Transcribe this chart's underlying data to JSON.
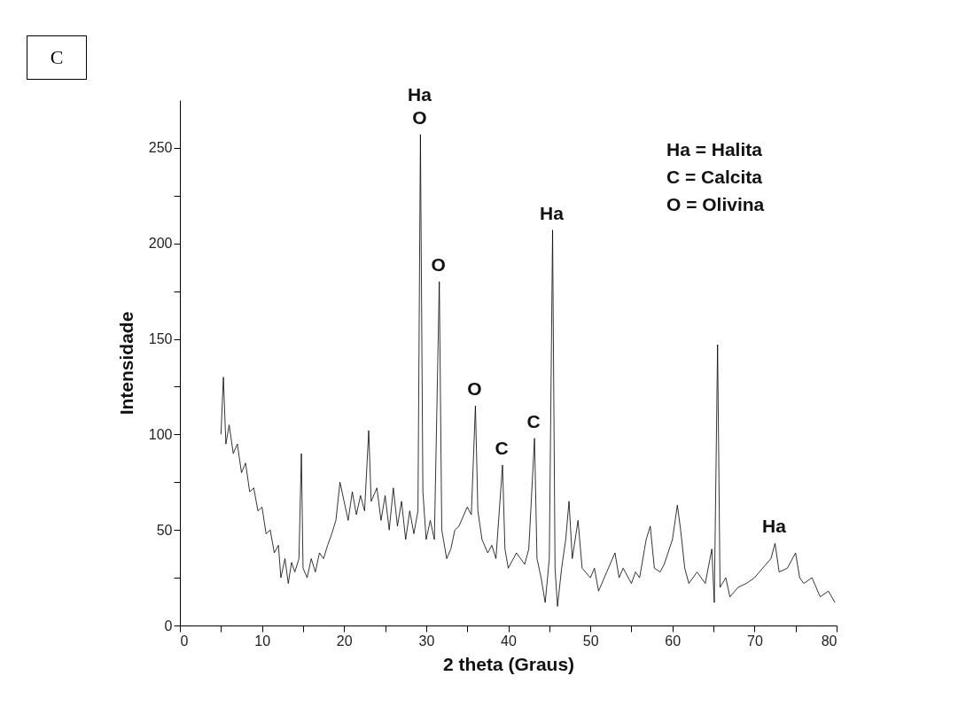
{
  "chart_data": {
    "type": "line",
    "xlabel": "2 theta (Graus)",
    "ylabel": "Intensidade",
    "xlim": [
      0,
      80
    ],
    "xticks": [
      0,
      {
        "value": 5,
        "label": null
      },
      10,
      {
        "value": 15,
        "label": null
      },
      20,
      {
        "value": 25,
        "label": null
      },
      30,
      {
        "value": 35,
        "label": null
      },
      40,
      {
        "value": 45,
        "label": null
      },
      50,
      {
        "value": 55,
        "label": null
      },
      60,
      {
        "value": 65,
        "label": null
      },
      70,
      {
        "value": 75,
        "label": null
      },
      80
    ],
    "ylim": [
      0,
      275
    ],
    "yticks": [
      0,
      {
        "value": 25,
        "label": null
      },
      50,
      {
        "value": 75,
        "label": null
      },
      100,
      {
        "value": 125,
        "label": null
      },
      150,
      {
        "value": 175,
        "label": null
      },
      200,
      {
        "value": 225,
        "label": null
      },
      250
    ],
    "grid": false,
    "marker": "none",
    "line_style": "solid",
    "annotations": [
      "C",
      "Ha = Halita",
      "C = Calcita",
      "O = Olivina",
      {
        "text": "Ha",
        "x": 29.3,
        "y": 257
      },
      {
        "text": "O",
        "x": 29.3,
        "y": 257
      },
      {
        "text": "O",
        "x": 31.6,
        "y": 180
      },
      {
        "text": "O",
        "x": 36,
        "y": 115
      },
      {
        "text": "C",
        "x": 39.3,
        "y": 84
      },
      {
        "text": "C",
        "x": 43.2,
        "y": 98
      },
      {
        "text": "Ha",
        "x": 45.4,
        "y": 207
      },
      {
        "text": "Ha",
        "x": 72.5,
        "y": 43
      }
    ],
    "series": [
      {
        "color": "#000000",
        "x": [
          5,
          5.3,
          5.6,
          6,
          6.5,
          7,
          7.5,
          8,
          8.5,
          9,
          9.5,
          10,
          10.5,
          11,
          11.5,
          12,
          12.3,
          12.8,
          13.2,
          13.6,
          14,
          14.5,
          14.8,
          15,
          15.5,
          16,
          16.5,
          17,
          17.5,
          18,
          18.5,
          19,
          19.5,
          20,
          20.5,
          21,
          21.5,
          22,
          22.5,
          23,
          23.3,
          24,
          24.5,
          25,
          25.5,
          26,
          26.5,
          27,
          27.5,
          28,
          28.5,
          29,
          29.3,
          29.6,
          30,
          30.5,
          31,
          31.6,
          31.9,
          32.5,
          33,
          33.5,
          34,
          35,
          35.5,
          36,
          36.3,
          36.8,
          37.5,
          38,
          38.5,
          39.3,
          39.6,
          40,
          41,
          42,
          42.5,
          43.2,
          43.5,
          44,
          44.5,
          45,
          45.4,
          45.7,
          46,
          46.5,
          47,
          47.4,
          47.8,
          48.5,
          49,
          50,
          50.5,
          51,
          52,
          53,
          53.5,
          54,
          55,
          55.5,
          56,
          56.8,
          57.3,
          57.8,
          58.5,
          59,
          60,
          60.6,
          61,
          61.5,
          62,
          63,
          64,
          64.8,
          65.1,
          65.5,
          65.8,
          66.5,
          67,
          68,
          69,
          70,
          71,
          72,
          72.5,
          73,
          74,
          75,
          75.5,
          76,
          77,
          78,
          79,
          79.8
        ],
        "values": [
          100,
          130,
          95,
          105,
          90,
          95,
          80,
          85,
          70,
          72,
          60,
          62,
          48,
          50,
          38,
          42,
          25,
          35,
          22,
          33,
          28,
          35,
          90,
          30,
          25,
          35,
          28,
          38,
          35,
          42,
          48,
          55,
          75,
          65,
          55,
          70,
          58,
          68,
          60,
          102,
          65,
          72,
          55,
          68,
          50,
          72,
          52,
          65,
          45,
          60,
          48,
          60,
          257,
          70,
          45,
          55,
          45,
          180,
          50,
          35,
          40,
          50,
          52,
          62,
          58,
          115,
          60,
          45,
          38,
          42,
          35,
          84,
          40,
          30,
          38,
          32,
          40,
          98,
          35,
          25,
          12,
          35,
          207,
          30,
          10,
          30,
          45,
          65,
          35,
          55,
          30,
          25,
          30,
          18,
          28,
          38,
          25,
          30,
          22,
          28,
          25,
          45,
          52,
          30,
          28,
          32,
          45,
          63,
          50,
          30,
          22,
          28,
          22,
          40,
          12,
          147,
          20,
          25,
          15,
          20,
          22,
          25,
          30,
          35,
          43,
          28,
          30,
          38,
          25,
          22,
          25,
          15,
          18,
          12
        ]
      }
    ]
  }
}
